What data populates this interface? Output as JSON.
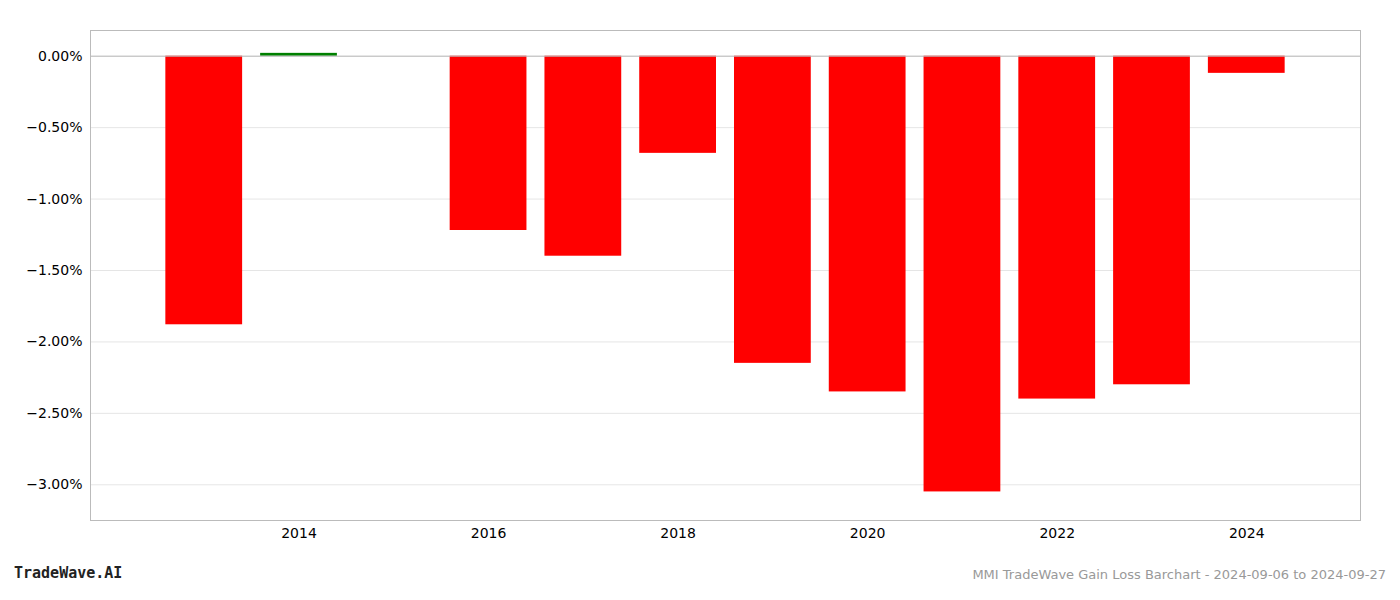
{
  "chart_data": {
    "type": "bar",
    "x": [
      2013,
      2014,
      2016,
      2017,
      2018,
      2019,
      2020,
      2021,
      2022,
      2023,
      2024
    ],
    "values": [
      -1.88,
      0.02,
      -1.22,
      -1.4,
      -0.68,
      -2.15,
      -2.35,
      -3.05,
      -2.4,
      -2.3,
      -0.12
    ],
    "colors": [
      "#ff0000",
      "#008000",
      "#ff0000",
      "#ff0000",
      "#ff0000",
      "#ff0000",
      "#ff0000",
      "#ff0000",
      "#ff0000",
      "#ff0000",
      "#ff0000"
    ],
    "xlim": [
      2011.8,
      2025.2
    ],
    "xticks": [
      2014,
      2016,
      2018,
      2020,
      2022,
      2024
    ],
    "ylim": [
      -3.25,
      0.18
    ],
    "yticks": [
      {
        "value": 0.0,
        "label": "0.00%"
      },
      {
        "value": -0.5,
        "label": "−0.50%"
      },
      {
        "value": -1.0,
        "label": "−1.00%"
      },
      {
        "value": -1.5,
        "label": "−1.50%"
      },
      {
        "value": -2.0,
        "label": "−2.00%"
      },
      {
        "value": -2.5,
        "label": "−2.50%"
      },
      {
        "value": -3.0,
        "label": "−3.00%"
      }
    ],
    "grid": true,
    "annotations": [
      "TradeWave.AI",
      "MMI TradeWave Gain Loss Barchart - 2024-09-06 to 2024-09-27"
    ]
  }
}
